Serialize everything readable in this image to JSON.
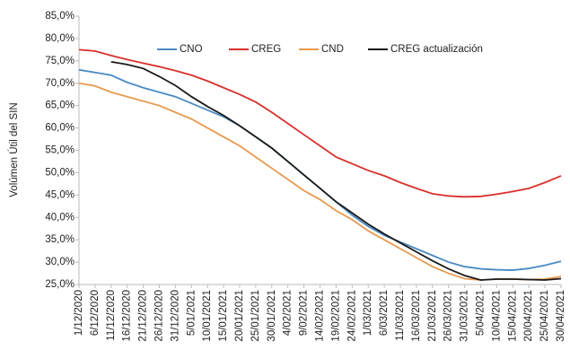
{
  "chart_data": {
    "type": "line",
    "y_label": "Volúmen Útil del SIN",
    "categories": [
      "1/12/2020",
      "6/12/2020",
      "11/12/2020",
      "16/12/2020",
      "21/12/2020",
      "26/12/2020",
      "31/12/2020",
      "5/01/2021",
      "10/01/2021",
      "15/01/2021",
      "20/01/2021",
      "25/01/2021",
      "30/01/2021",
      "4/02/2021",
      "9/02/2021",
      "14/02/2021",
      "19/02/2021",
      "24/02/2021",
      "1/03/2021",
      "6/03/2021",
      "11/03/2021",
      "16/03/2021",
      "21/03/2021",
      "26/03/2021",
      "31/03/2021",
      "5/04/2021",
      "10/04/2021",
      "15/04/2021",
      "20/04/2021",
      "25/04/2021",
      "30/04/2021"
    ],
    "series": [
      {
        "name": "CNO",
        "color": "#4a8ac4",
        "values": [
          73.0,
          72.4,
          71.8,
          70.2,
          69.0,
          68.0,
          67.0,
          65.5,
          64.0,
          62.5,
          60.5,
          58.0,
          55.5,
          52.5,
          49.5,
          46.5,
          43.5,
          40.5,
          38.0,
          36.0,
          34.5,
          33.0,
          31.5,
          30.0,
          29.0,
          28.5,
          28.3,
          28.2,
          28.6,
          29.3,
          30.2
        ]
      },
      {
        "name": "CREG",
        "color": "#d9302c",
        "values": [
          77.5,
          77.2,
          76.2,
          75.3,
          74.5,
          73.7,
          72.8,
          71.8,
          70.5,
          69.0,
          67.5,
          65.8,
          63.5,
          61.0,
          58.5,
          56.0,
          53.5,
          52.0,
          50.5,
          49.3,
          47.8,
          46.5,
          45.3,
          44.8,
          44.6,
          44.7,
          45.2,
          45.8,
          46.5,
          47.8,
          49.3
        ]
      },
      {
        "name": "CND",
        "color": "#e8994e",
        "values": [
          70.0,
          69.4,
          68.0,
          67.0,
          66.0,
          65.0,
          63.5,
          62.0,
          60.0,
          58.0,
          56.0,
          53.5,
          51.0,
          48.5,
          46.0,
          44.0,
          41.5,
          39.5,
          37.0,
          35.0,
          33.0,
          31.0,
          29.0,
          27.5,
          26.3,
          26.0,
          26.2,
          26.2,
          26.1,
          26.2,
          26.8
        ]
      },
      {
        "name": "CREG actualización",
        "color": "#1a1a1a",
        "values": [
          null,
          null,
          74.8,
          74.2,
          73.3,
          71.5,
          69.5,
          67.0,
          64.8,
          62.8,
          60.5,
          58.0,
          55.5,
          52.5,
          49.5,
          46.5,
          43.5,
          41.0,
          38.5,
          36.3,
          34.3,
          32.3,
          30.3,
          28.5,
          27.0,
          26.0,
          26.2,
          26.2,
          26.1,
          26.0,
          26.3
        ]
      }
    ],
    "ylim": [
      25,
      85
    ],
    "yticks": [
      {
        "value": 25,
        "label": "25,0%"
      },
      {
        "value": 30,
        "label": "30,0%"
      },
      {
        "value": 35,
        "label": "35,0%"
      },
      {
        "value": 40,
        "label": "40,0%"
      },
      {
        "value": 45,
        "label": "45,0%"
      },
      {
        "value": 50,
        "label": "50,0%"
      },
      {
        "value": 55,
        "label": "55,0%"
      },
      {
        "value": 60,
        "label": "60,0%"
      },
      {
        "value": 65,
        "label": "65,0%"
      },
      {
        "value": 70,
        "label": "70,0%"
      },
      {
        "value": 75,
        "label": "75,0%"
      },
      {
        "value": 80,
        "label": "80,0%"
      },
      {
        "value": 85,
        "label": "85,0%"
      }
    ],
    "grid": false,
    "legend": "top"
  }
}
